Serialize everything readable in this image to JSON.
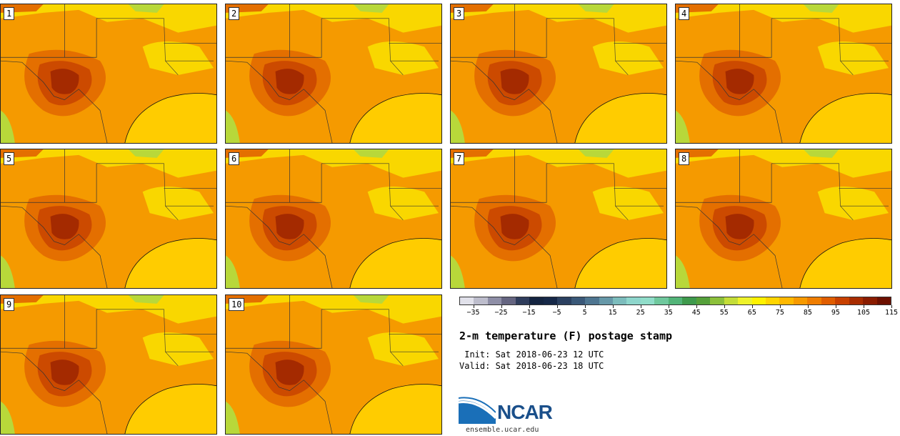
{
  "title": "2-m temperature (F) postage stamp",
  "init_line": " Init: Sat 2018-06-23 12 UTC",
  "valid_line": "Valid: Sat 2018-06-23 18 UTC",
  "logo": {
    "text": "NCAR",
    "url": "ensemble.ucar.edu"
  },
  "panels": [
    {
      "label": "1"
    },
    {
      "label": "2"
    },
    {
      "label": "3"
    },
    {
      "label": "4"
    },
    {
      "label": "5"
    },
    {
      "label": "6"
    },
    {
      "label": "7"
    },
    {
      "label": "8"
    },
    {
      "label": "9"
    },
    {
      "label": "10"
    }
  ],
  "colorbar": {
    "tick_labels": [
      "−35",
      "−25",
      "−15",
      "−5",
      "5",
      "15",
      "25",
      "35",
      "45",
      "55",
      "65",
      "75",
      "85",
      "95",
      "105",
      "115"
    ],
    "colors": [
      "#e1e1ea",
      "#bdbdcc",
      "#8e8ea6",
      "#656581",
      "#2f3d5c",
      "#142440",
      "#162848",
      "#2b4060",
      "#3a5878",
      "#4e7590",
      "#6698a8",
      "#7cbcbc",
      "#8ed6cc",
      "#90ddc9",
      "#6fc89d",
      "#52b478",
      "#3e9a4c",
      "#55a03a",
      "#8cc03a",
      "#c4dd38",
      "#eef22a",
      "#fff200",
      "#ffd500",
      "#ffb800",
      "#f79a00",
      "#ef7d00",
      "#e05d00",
      "#c84000",
      "#a82c00",
      "#8a1c00",
      "#6d1000"
    ]
  },
  "map_colors": {
    "gulf": "#ffcc00",
    "cool": "#f9d700",
    "warm": "#f59a00",
    "hot": "#e46f00",
    "hotter": "#cc4a00",
    "hottest": "#a42a00",
    "green": "#b8d83a"
  }
}
